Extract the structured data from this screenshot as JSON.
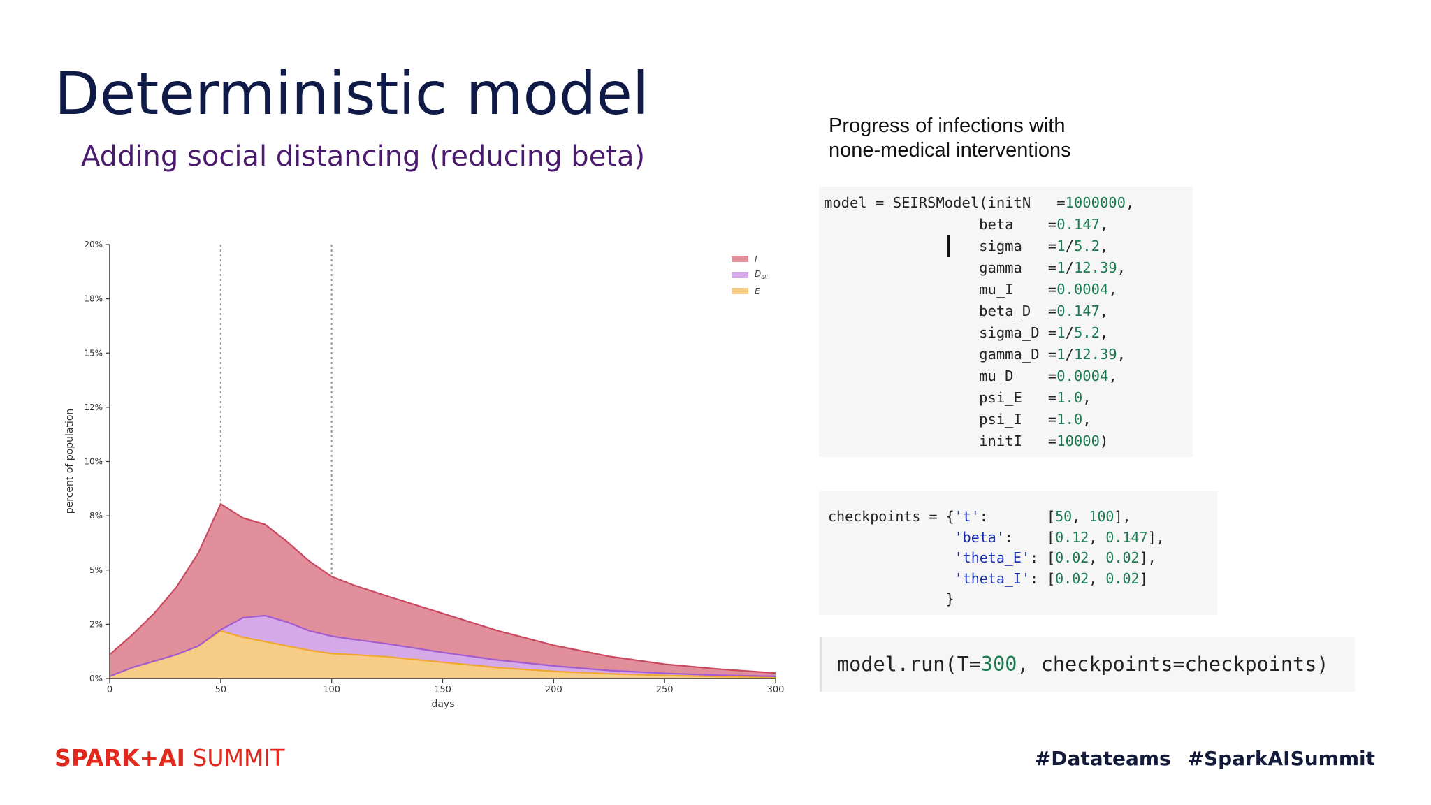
{
  "slide": {
    "title": "Deterministic model",
    "subtitle": "Adding social distancing (reducing beta)",
    "caption_line1": "Progress of infections with",
    "caption_line2": "none-medical interventions"
  },
  "code": {
    "model_lines": [
      "model = SEIRSModel(initN   =1000000,",
      "                  beta    =0.147,",
      "                  sigma   =1/5.2,",
      "                  gamma   =1/12.39,",
      "                  mu_I    =0.0004,",
      "                  beta_D  =0.147,",
      "                  sigma_D =1/5.2,",
      "                  gamma_D =1/12.39,",
      "                  mu_D    =0.0004,",
      "                  psi_E   =1.0,",
      "                  psi_I   =1.0,",
      "                  initI   =10000)"
    ],
    "checkpoints_lines": [
      "checkpoints = {'t':       [50, 100],",
      "               'beta':    [0.12, 0.147],",
      "               'theta_E': [0.02, 0.02],",
      "               'theta_I': [0.02, 0.02]",
      "              }"
    ],
    "run_line": "model.run(T=300, checkpoints=checkpoints)"
  },
  "footer": {
    "brand_bold": "SPARK+AI",
    "brand_thin": "SUMMIT",
    "hashtag1": "#Datateams",
    "hashtag2": "#SparkAISummit"
  },
  "colors": {
    "I": "#e28f9c",
    "I_line": "#c94a60",
    "D_all": "#d6a9e8",
    "D_all_line": "#a35bd0",
    "E": "#f7cc86",
    "E_line": "#f0a830",
    "title": "#101a47",
    "subtitle": "#4b1a6e",
    "brand": "#e0281d"
  },
  "chart_data": {
    "type": "area",
    "stacked": true,
    "xlabel": "days",
    "ylabel": "percent of population",
    "xlim": [
      0,
      300
    ],
    "ylim": [
      0,
      20
    ],
    "x_ticks": [
      0,
      50,
      100,
      150,
      200,
      250,
      300
    ],
    "y_ticks": [
      0,
      2.5,
      5,
      7.5,
      10,
      12.5,
      15,
      17.5,
      20
    ],
    "y_tick_labels": [
      "0%",
      "2%",
      "5%",
      "8%",
      "10%",
      "12%",
      "15%",
      "18%",
      "20%"
    ],
    "vlines": [
      50,
      100
    ],
    "legend_position": "top-right",
    "x": [
      0,
      10,
      20,
      30,
      40,
      50,
      60,
      70,
      80,
      90,
      100,
      110,
      125,
      150,
      175,
      200,
      225,
      250,
      275,
      300
    ],
    "series": [
      {
        "name": "E",
        "values": [
          0.1,
          0.5,
          0.8,
          1.1,
          1.5,
          2.2,
          1.9,
          1.7,
          1.5,
          1.3,
          1.15,
          1.1,
          1.0,
          0.75,
          0.5,
          0.33,
          0.22,
          0.14,
          0.09,
          0.06
        ]
      },
      {
        "name": "D_all",
        "values": [
          0.0,
          0.0,
          0.0,
          0.0,
          0.0,
          0.05,
          0.9,
          1.2,
          1.1,
          0.9,
          0.8,
          0.7,
          0.6,
          0.45,
          0.35,
          0.25,
          0.15,
          0.1,
          0.06,
          0.04
        ]
      },
      {
        "name": "I",
        "values": [
          1.0,
          1.5,
          2.2,
          3.1,
          4.3,
          5.8,
          4.6,
          4.2,
          3.7,
          3.2,
          2.75,
          2.5,
          2.2,
          1.8,
          1.35,
          0.95,
          0.65,
          0.42,
          0.28,
          0.15
        ]
      }
    ]
  }
}
